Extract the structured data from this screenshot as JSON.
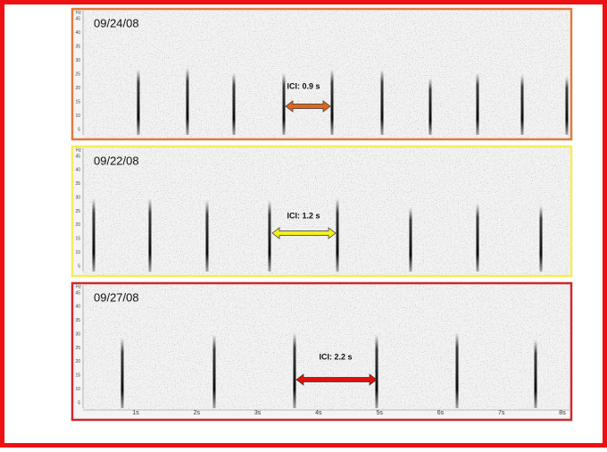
{
  "panels": [
    {
      "date": "09/24/08",
      "ici": "ICI: 0.9 s"
    },
    {
      "date": "09/22/08",
      "ici": "ICI: 1.2 s"
    },
    {
      "date": "09/27/08",
      "ici": "ICI: 2.2 s"
    }
  ],
  "y_axis": {
    "unit": "Hz",
    "ticks": [
      "45",
      "40",
      "35",
      "30",
      "25",
      "20",
      "15",
      "10",
      "5"
    ]
  },
  "time_axis": {
    "ticks": [
      "1s",
      "2s",
      "3s",
      "4s",
      "5s",
      "6s",
      "7s",
      "8s"
    ]
  }
}
